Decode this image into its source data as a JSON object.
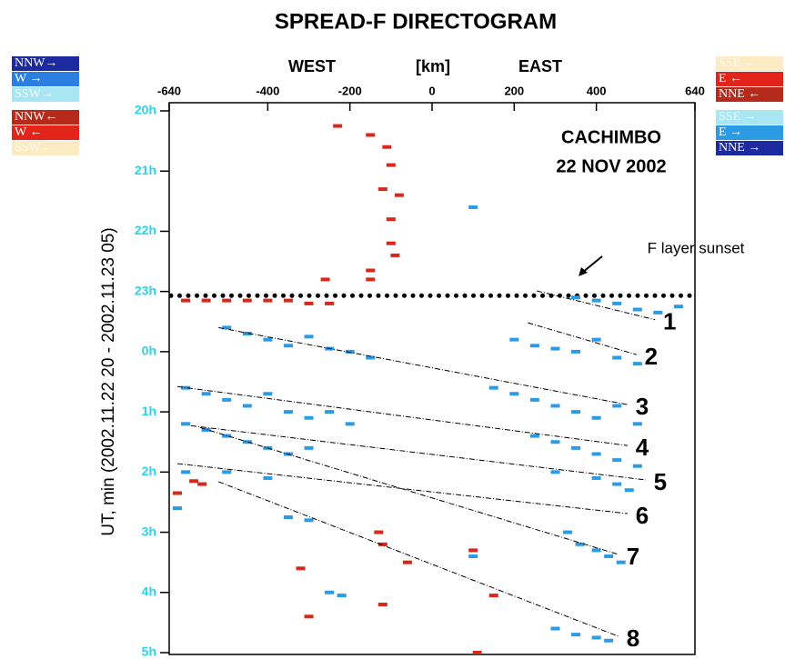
{
  "chart_data": {
    "type": "scatter",
    "title": "SPREAD-F DIRECTOGRAM",
    "x_labels": [
      "WEST",
      "[km]",
      "EAST"
    ],
    "y_label": "UT, min (2002.11.22 20 - 2002.11.23 05)",
    "annotations": [
      "CACHIMBO",
      "22 NOV 2002"
    ],
    "sunset": {
      "label": "F layer sunset",
      "y": 3.07
    },
    "xlim": [
      -640,
      640
    ],
    "xticks": [
      -640,
      -400,
      -200,
      0,
      200,
      400,
      640
    ],
    "ylim": [
      0,
      9
    ],
    "yticks": [
      {
        "value": 0,
        "label": "20h"
      },
      {
        "value": 1,
        "label": "21h"
      },
      {
        "value": 2,
        "label": "22h"
      },
      {
        "value": 3,
        "label": "23h"
      },
      {
        "value": 4,
        "label": "0h"
      },
      {
        "value": 5,
        "label": "1h"
      },
      {
        "value": 6,
        "label": "2h"
      },
      {
        "value": 7,
        "label": "3h"
      },
      {
        "value": 8,
        "label": "4h"
      },
      {
        "value": 9,
        "label": "5h"
      }
    ],
    "legend_left": [
      {
        "label": "NNW→",
        "color": "#1b2a9e",
        "text_color": "#ffffff"
      },
      {
        "label": "W →",
        "color": "#2b7fe0",
        "text_color": "#ffffff"
      },
      {
        "label": "SSW→",
        "color": "#a8e6f4",
        "text_color": "#eefbff"
      },
      {
        "label": "NNW←",
        "color": "#b62a1c",
        "text_color": "#ffffff"
      },
      {
        "label": "W ←",
        "color": "#e3241b",
        "text_color": "#ffffff"
      },
      {
        "label": "SSW←",
        "color": "#fcebc3",
        "text_color": "#fffaf0"
      }
    ],
    "legend_right": [
      {
        "label": "SSE ←",
        "color": "#fcebc3",
        "text_color": "#fffaf0"
      },
      {
        "label": "E ←",
        "color": "#e3241b",
        "text_color": "#ffffff"
      },
      {
        "label": "NNE ←",
        "color": "#b62a1c",
        "text_color": "#ffffff"
      },
      {
        "label": "SSE →",
        "color": "#a8e6f4",
        "text_color": "#eefbff"
      },
      {
        "label": "E →",
        "color": "#2b9be6",
        "text_color": "#ffffff"
      },
      {
        "label": "NNE →",
        "color": "#1b2a9e",
        "text_color": "#ffffff"
      }
    ],
    "series": [
      {
        "color": "#2b9be6",
        "x": [
          350,
          400,
          450,
          500,
          550,
          600,
          -500,
          -450,
          -400,
          -350,
          -300,
          -250,
          -200,
          -150,
          -600,
          -550,
          -500,
          -450,
          -400,
          -350,
          -300,
          -250,
          -200,
          -600,
          -550,
          -500,
          -450,
          -400,
          -350,
          -300,
          -600,
          -500,
          -400,
          -620,
          -300,
          -350,
          200,
          250,
          300,
          350,
          400,
          450,
          500,
          150,
          200,
          250,
          300,
          350,
          400,
          450,
          500,
          250,
          300,
          350,
          400,
          450,
          500,
          300,
          400,
          450,
          480,
          330,
          360,
          400,
          430,
          460,
          -250,
          -220,
          100,
          100,
          300,
          350,
          400,
          430
        ],
        "y": [
          3.1,
          3.15,
          3.2,
          3.3,
          3.35,
          3.25,
          3.6,
          3.7,
          3.8,
          3.9,
          3.75,
          3.95,
          4.0,
          4.1,
          4.6,
          4.7,
          4.8,
          4.9,
          4.7,
          5.0,
          5.1,
          5.0,
          5.2,
          5.2,
          5.3,
          5.4,
          5.5,
          5.6,
          5.7,
          5.6,
          6.0,
          6.0,
          6.1,
          6.6,
          6.8,
          6.75,
          3.8,
          3.9,
          3.95,
          4.0,
          3.8,
          4.1,
          4.2,
          4.6,
          4.7,
          4.8,
          4.9,
          5.0,
          5.1,
          4.9,
          5.2,
          5.4,
          5.5,
          5.6,
          5.7,
          5.8,
          5.9,
          6.0,
          6.1,
          6.2,
          6.3,
          7.0,
          7.2,
          7.3,
          7.4,
          7.5,
          8.0,
          8.05,
          7.4,
          1.6,
          8.6,
          8.7,
          8.75,
          8.8
        ]
      },
      {
        "color": "#d8281c",
        "x": [
          -230,
          -150,
          -110,
          -100,
          -120,
          -80,
          -100,
          -90,
          -100,
          -150,
          -260,
          -150,
          -600,
          -550,
          -500,
          -450,
          -400,
          -350,
          -300,
          -250,
          -580,
          -560,
          -620,
          -130,
          -120,
          -320,
          -300,
          -120,
          100,
          -60,
          150,
          110
        ],
        "y": [
          0.25,
          0.4,
          0.6,
          0.9,
          1.3,
          1.4,
          1.8,
          2.4,
          2.2,
          2.65,
          2.8,
          2.8,
          3.15,
          3.15,
          3.15,
          3.15,
          3.15,
          3.15,
          3.2,
          3.2,
          6.15,
          6.2,
          6.35,
          7.0,
          7.2,
          7.6,
          8.4,
          8.2,
          7.3,
          7.5,
          8.05,
          9.0
        ]
      }
    ],
    "lines": [
      {
        "label": "1",
        "x": [
          255,
          543
        ],
        "y": [
          2.99,
          3.47
        ]
      },
      {
        "label": "2",
        "x": [
          233,
          498
        ],
        "y": [
          3.52,
          4.05
        ]
      },
      {
        "label": "3",
        "x": [
          -520,
          476
        ],
        "y": [
          3.6,
          4.88
        ]
      },
      {
        "label": "4",
        "x": [
          -620,
          476
        ],
        "y": [
          4.58,
          5.56
        ]
      },
      {
        "label": "5",
        "x": [
          -587,
          520
        ],
        "y": [
          5.23,
          6.13
        ]
      },
      {
        "label": "6",
        "x": [
          -620,
          476
        ],
        "y": [
          5.86,
          6.69
        ]
      },
      {
        "label": "7",
        "x": [
          -565,
          454
        ],
        "y": [
          5.26,
          7.37
        ]
      },
      {
        "label": "8",
        "x": [
          -520,
          454
        ],
        "y": [
          6.16,
          8.73
        ]
      }
    ]
  }
}
